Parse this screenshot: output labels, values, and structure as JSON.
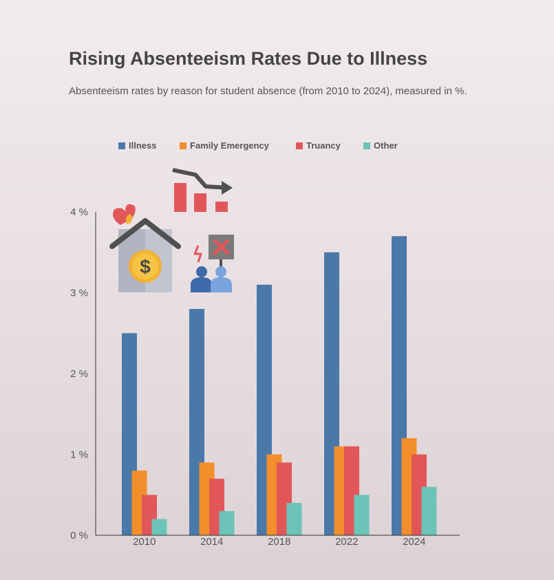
{
  "title": "Rising Absenteeism Rates Due to Illness",
  "subtitle": "Absenteeism rates by reason for student absence (from 2010 to 2024), measured in %.",
  "colors": {
    "illness": "#4a78a8",
    "family_emergency": "#f28e2b",
    "truancy": "#e15759",
    "other": "#6cc3b8",
    "axis": "#333333",
    "text": "#555555"
  },
  "icons": [
    "house-fire-icon",
    "declining-bars-icon",
    "protest-people-icon"
  ],
  "chart_data": {
    "type": "bar",
    "title": "Rising Absenteeism Rates Due to Illness",
    "xlabel": "",
    "ylabel": "",
    "categories": [
      "2010",
      "2014",
      "2018",
      "2022",
      "2024"
    ],
    "series": [
      {
        "name": "Illness",
        "values": [
          2.5,
          2.8,
          3.1,
          3.5,
          3.7
        ]
      },
      {
        "name": "Family Emergency",
        "values": [
          0.8,
          0.9,
          1.0,
          1.1,
          1.2
        ]
      },
      {
        "name": "Truancy",
        "values": [
          0.5,
          0.7,
          0.9,
          1.1,
          1.0
        ]
      },
      {
        "name": "Other",
        "values": [
          0.2,
          0.3,
          0.4,
          0.5,
          0.6
        ]
      }
    ],
    "ylim": [
      0,
      4
    ],
    "yticks": [
      {
        "value": 0,
        "label": "0 %"
      },
      {
        "value": 1,
        "label": "1 %"
      },
      {
        "value": 2,
        "label": "2 %"
      },
      {
        "value": 3,
        "label": "3 %"
      },
      {
        "value": 4,
        "label": "4 %"
      }
    ],
    "grid": false,
    "legend_position": "top-left"
  }
}
